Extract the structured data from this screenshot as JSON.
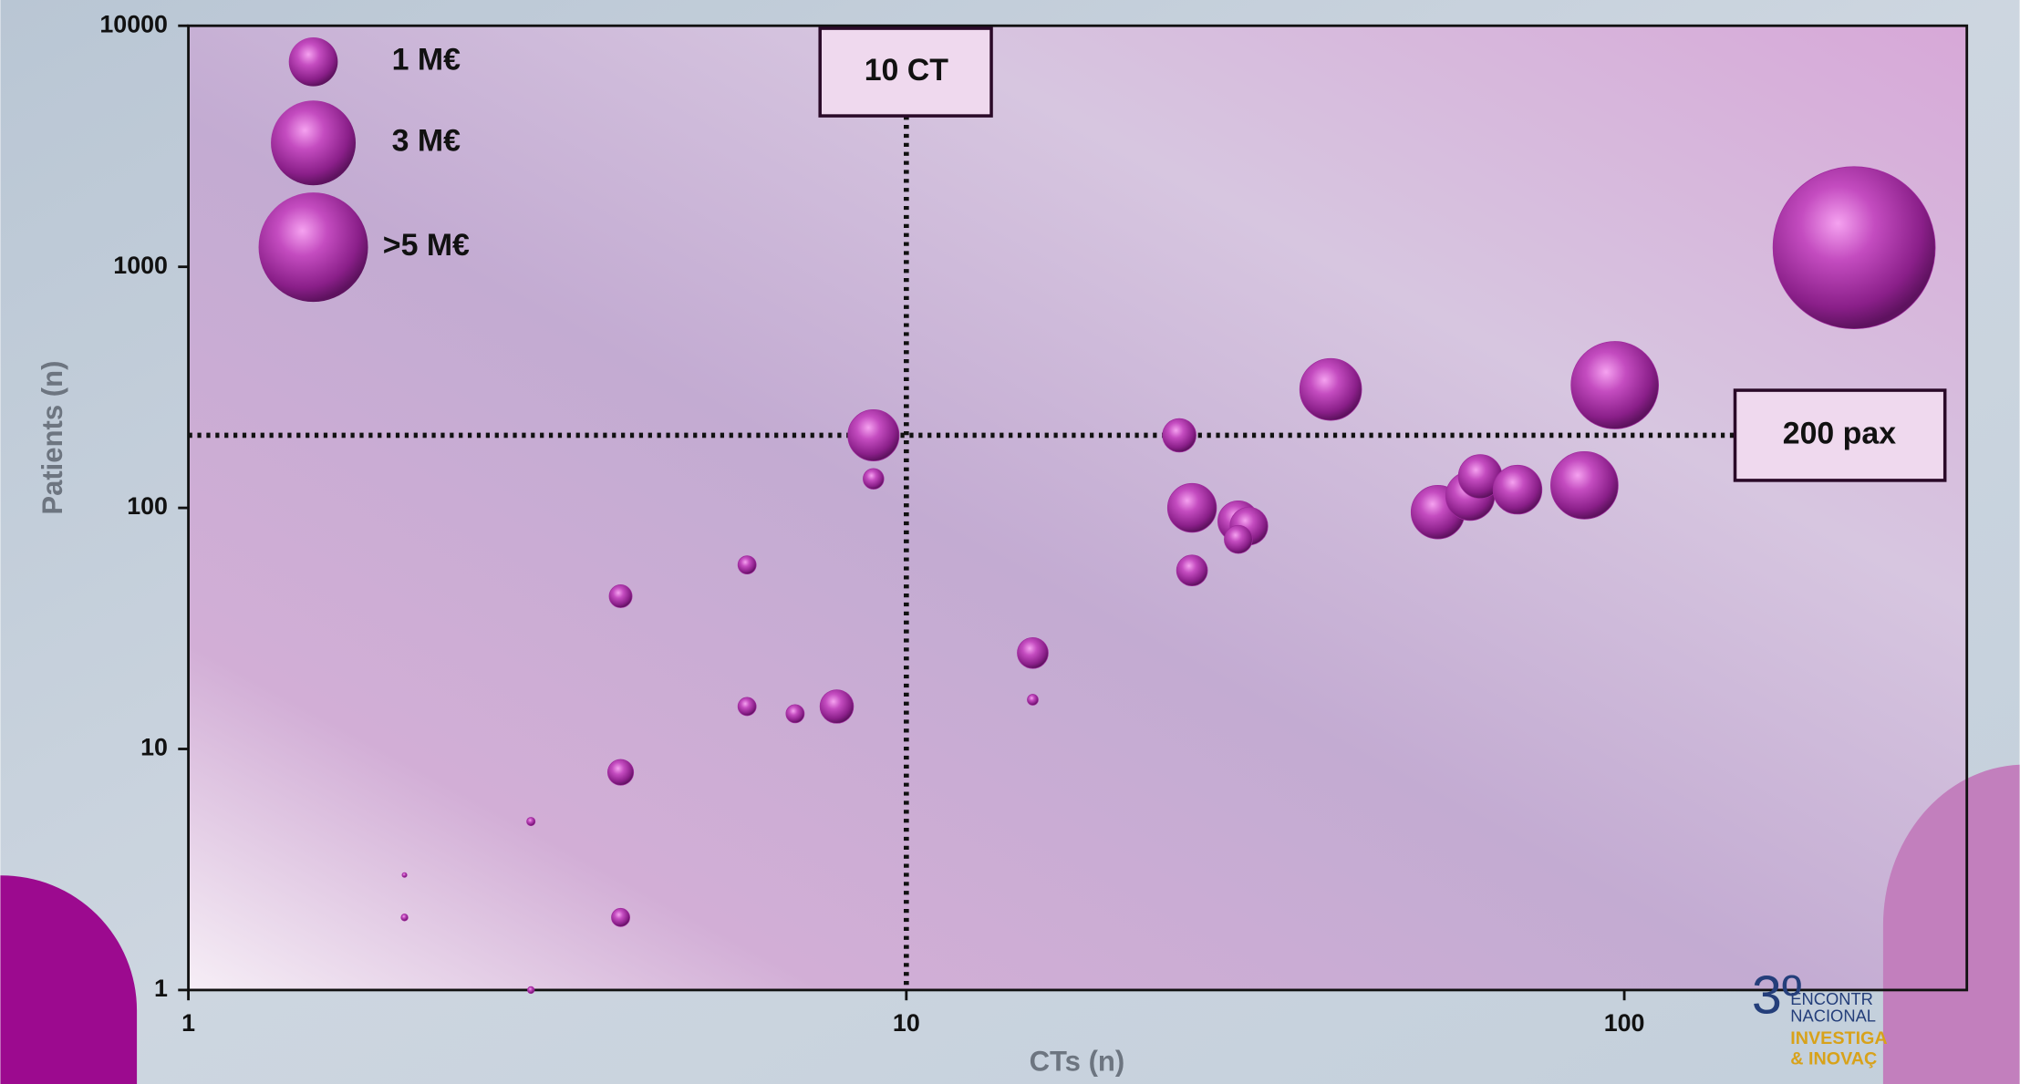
{
  "chart_data": {
    "type": "bubble",
    "x_label": "CTs (n)",
    "y_label": "Patients (n)",
    "log_x": true,
    "log_y": true,
    "xlim": [
      1,
      300
    ],
    "ylim": [
      1,
      10000
    ],
    "xticks": [
      1,
      10,
      100
    ],
    "yticks": [
      1,
      10,
      100,
      1000,
      10000
    ],
    "color": "#a02a9e",
    "x": [
      9,
      9,
      4,
      6,
      6,
      7,
      8,
      4,
      3,
      2,
      2,
      4,
      3,
      15,
      15,
      24,
      25,
      25,
      29,
      30,
      29,
      39,
      55,
      61,
      63,
      71,
      88,
      97,
      209
    ],
    "values": [
      200,
      132,
      43,
      58,
      15,
      14,
      15,
      8,
      5,
      3,
      2,
      2,
      1,
      25,
      16,
      200,
      100,
      55,
      88,
      84,
      74,
      310,
      96,
      112,
      135,
      119,
      124,
      323,
      1200
    ],
    "sizes": [
      1.1,
      0.18,
      0.22,
      0.14,
      0.14,
      0.14,
      0.47,
      0.28,
      0.03,
      0.01,
      0.02,
      0.14,
      0.02,
      0.4,
      0.05,
      0.47,
      1.0,
      0.4,
      0.7,
      0.6,
      0.33,
      1.6,
      1.2,
      1.0,
      0.8,
      1.0,
      1.9,
      3.2,
      11
    ],
    "legend": [
      {
        "label": "1 M€",
        "size": 1
      },
      {
        "label": "3 M€",
        "size": 3
      },
      {
        "label": ">5 M€",
        "size": 5
      }
    ],
    "reference_lines": [
      {
        "axis": "x",
        "value": 10,
        "label": "10 CT"
      },
      {
        "axis": "y",
        "value": 200,
        "label": "200 pax"
      }
    ]
  },
  "logo": {
    "mark": "3º",
    "lines": [
      "ENCONTR",
      "NACIONAL",
      "INVESTIGA",
      "& INOVAÇ"
    ]
  }
}
